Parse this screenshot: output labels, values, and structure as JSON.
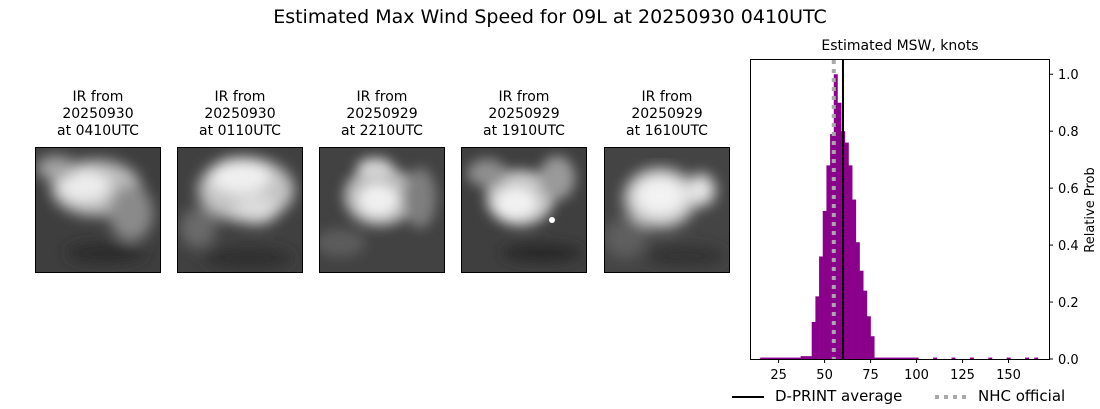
{
  "title": "Estimated Max Wind Speed for 09L at 20250930 0410UTC",
  "ir_panels": [
    {
      "line1": "IR from",
      "line2": "20250930",
      "line3": "at 0410UTC"
    },
    {
      "line1": "IR from",
      "line2": "20250930",
      "line3": "at 0110UTC"
    },
    {
      "line1": "IR from",
      "line2": "20250929",
      "line3": "at 2210UTC"
    },
    {
      "line1": "IR from",
      "line2": "20250929",
      "line3": "at 1910UTC"
    },
    {
      "line1": "IR from",
      "line2": "20250929",
      "line3": "at 1610UTC"
    }
  ],
  "chart_data": {
    "type": "bar",
    "title": "Estimated MSW, knots",
    "xlabel": "",
    "ylabel": "Relative Prob",
    "xlim": [
      10,
      172
    ],
    "ylim": [
      0,
      1.05
    ],
    "xticks": [
      25,
      50,
      75,
      100,
      125,
      150
    ],
    "yticks": [
      0.0,
      0.2,
      0.4,
      0.6,
      0.8,
      1.0
    ],
    "bin_width": 2,
    "bins": [
      {
        "x": 16,
        "y": 0.005
      },
      {
        "x": 18,
        "y": 0.005
      },
      {
        "x": 20,
        "y": 0.005
      },
      {
        "x": 22,
        "y": 0.005
      },
      {
        "x": 24,
        "y": 0.005
      },
      {
        "x": 26,
        "y": 0.005
      },
      {
        "x": 28,
        "y": 0.005
      },
      {
        "x": 30,
        "y": 0.005
      },
      {
        "x": 32,
        "y": 0.005
      },
      {
        "x": 34,
        "y": 0.005
      },
      {
        "x": 36,
        "y": 0.005
      },
      {
        "x": 38,
        "y": 0.01
      },
      {
        "x": 40,
        "y": 0.01
      },
      {
        "x": 42,
        "y": 0.01
      },
      {
        "x": 44,
        "y": 0.13
      },
      {
        "x": 46,
        "y": 0.22
      },
      {
        "x": 48,
        "y": 0.36
      },
      {
        "x": 50,
        "y": 0.52
      },
      {
        "x": 52,
        "y": 0.68
      },
      {
        "x": 54,
        "y": 0.79
      },
      {
        "x": 56,
        "y": 1.0
      },
      {
        "x": 58,
        "y": 0.9
      },
      {
        "x": 60,
        "y": 0.8
      },
      {
        "x": 62,
        "y": 0.76
      },
      {
        "x": 64,
        "y": 0.68
      },
      {
        "x": 66,
        "y": 0.56
      },
      {
        "x": 68,
        "y": 0.41
      },
      {
        "x": 70,
        "y": 0.31
      },
      {
        "x": 72,
        "y": 0.24
      },
      {
        "x": 74,
        "y": 0.15
      },
      {
        "x": 76,
        "y": 0.08
      },
      {
        "x": 78,
        "y": 0.005
      },
      {
        "x": 80,
        "y": 0.005
      },
      {
        "x": 82,
        "y": 0.005
      },
      {
        "x": 84,
        "y": 0.005
      },
      {
        "x": 86,
        "y": 0.005
      },
      {
        "x": 88,
        "y": 0.005
      },
      {
        "x": 90,
        "y": 0.005
      },
      {
        "x": 92,
        "y": 0.005
      },
      {
        "x": 94,
        "y": 0.005
      },
      {
        "x": 96,
        "y": 0.005
      },
      {
        "x": 98,
        "y": 0.005
      },
      {
        "x": 100,
        "y": 0.005
      },
      {
        "x": 110,
        "y": 0.005
      },
      {
        "x": 120,
        "y": 0.005
      },
      {
        "x": 130,
        "y": 0.005
      },
      {
        "x": 140,
        "y": 0.005
      },
      {
        "x": 150,
        "y": 0.005
      },
      {
        "x": 160,
        "y": 0.005
      },
      {
        "x": 165,
        "y": 0.005
      }
    ],
    "dprint_average": 60,
    "nhc_official": 55,
    "bar_color": "#8b008b",
    "dprint_color": "#000000",
    "nhc_color": "#a9a9a9",
    "legend": {
      "dprint_label": "D-PRINT average",
      "nhc_label": "NHC official",
      "placement": "bottom"
    }
  }
}
